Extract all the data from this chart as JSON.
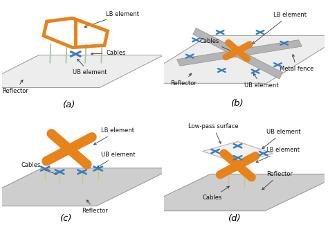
{
  "bg_color": "#ffffff",
  "orange": "#E8821A",
  "blue": "#3A7CC3",
  "gray_panel_a": "#EBEBEB",
  "gray_panel_cd": "#C8C8C8",
  "gray_fence": "#B0B0B0",
  "stem_color": "#A8C8A8",
  "label_fontsize": 6.0,
  "subfig_fontsize": 9.5,
  "subfigs": [
    "(a)",
    "(b)",
    "(c)",
    "(d)"
  ],
  "panels_a_skew": 0.22,
  "panels_cd_skew": 0.25
}
